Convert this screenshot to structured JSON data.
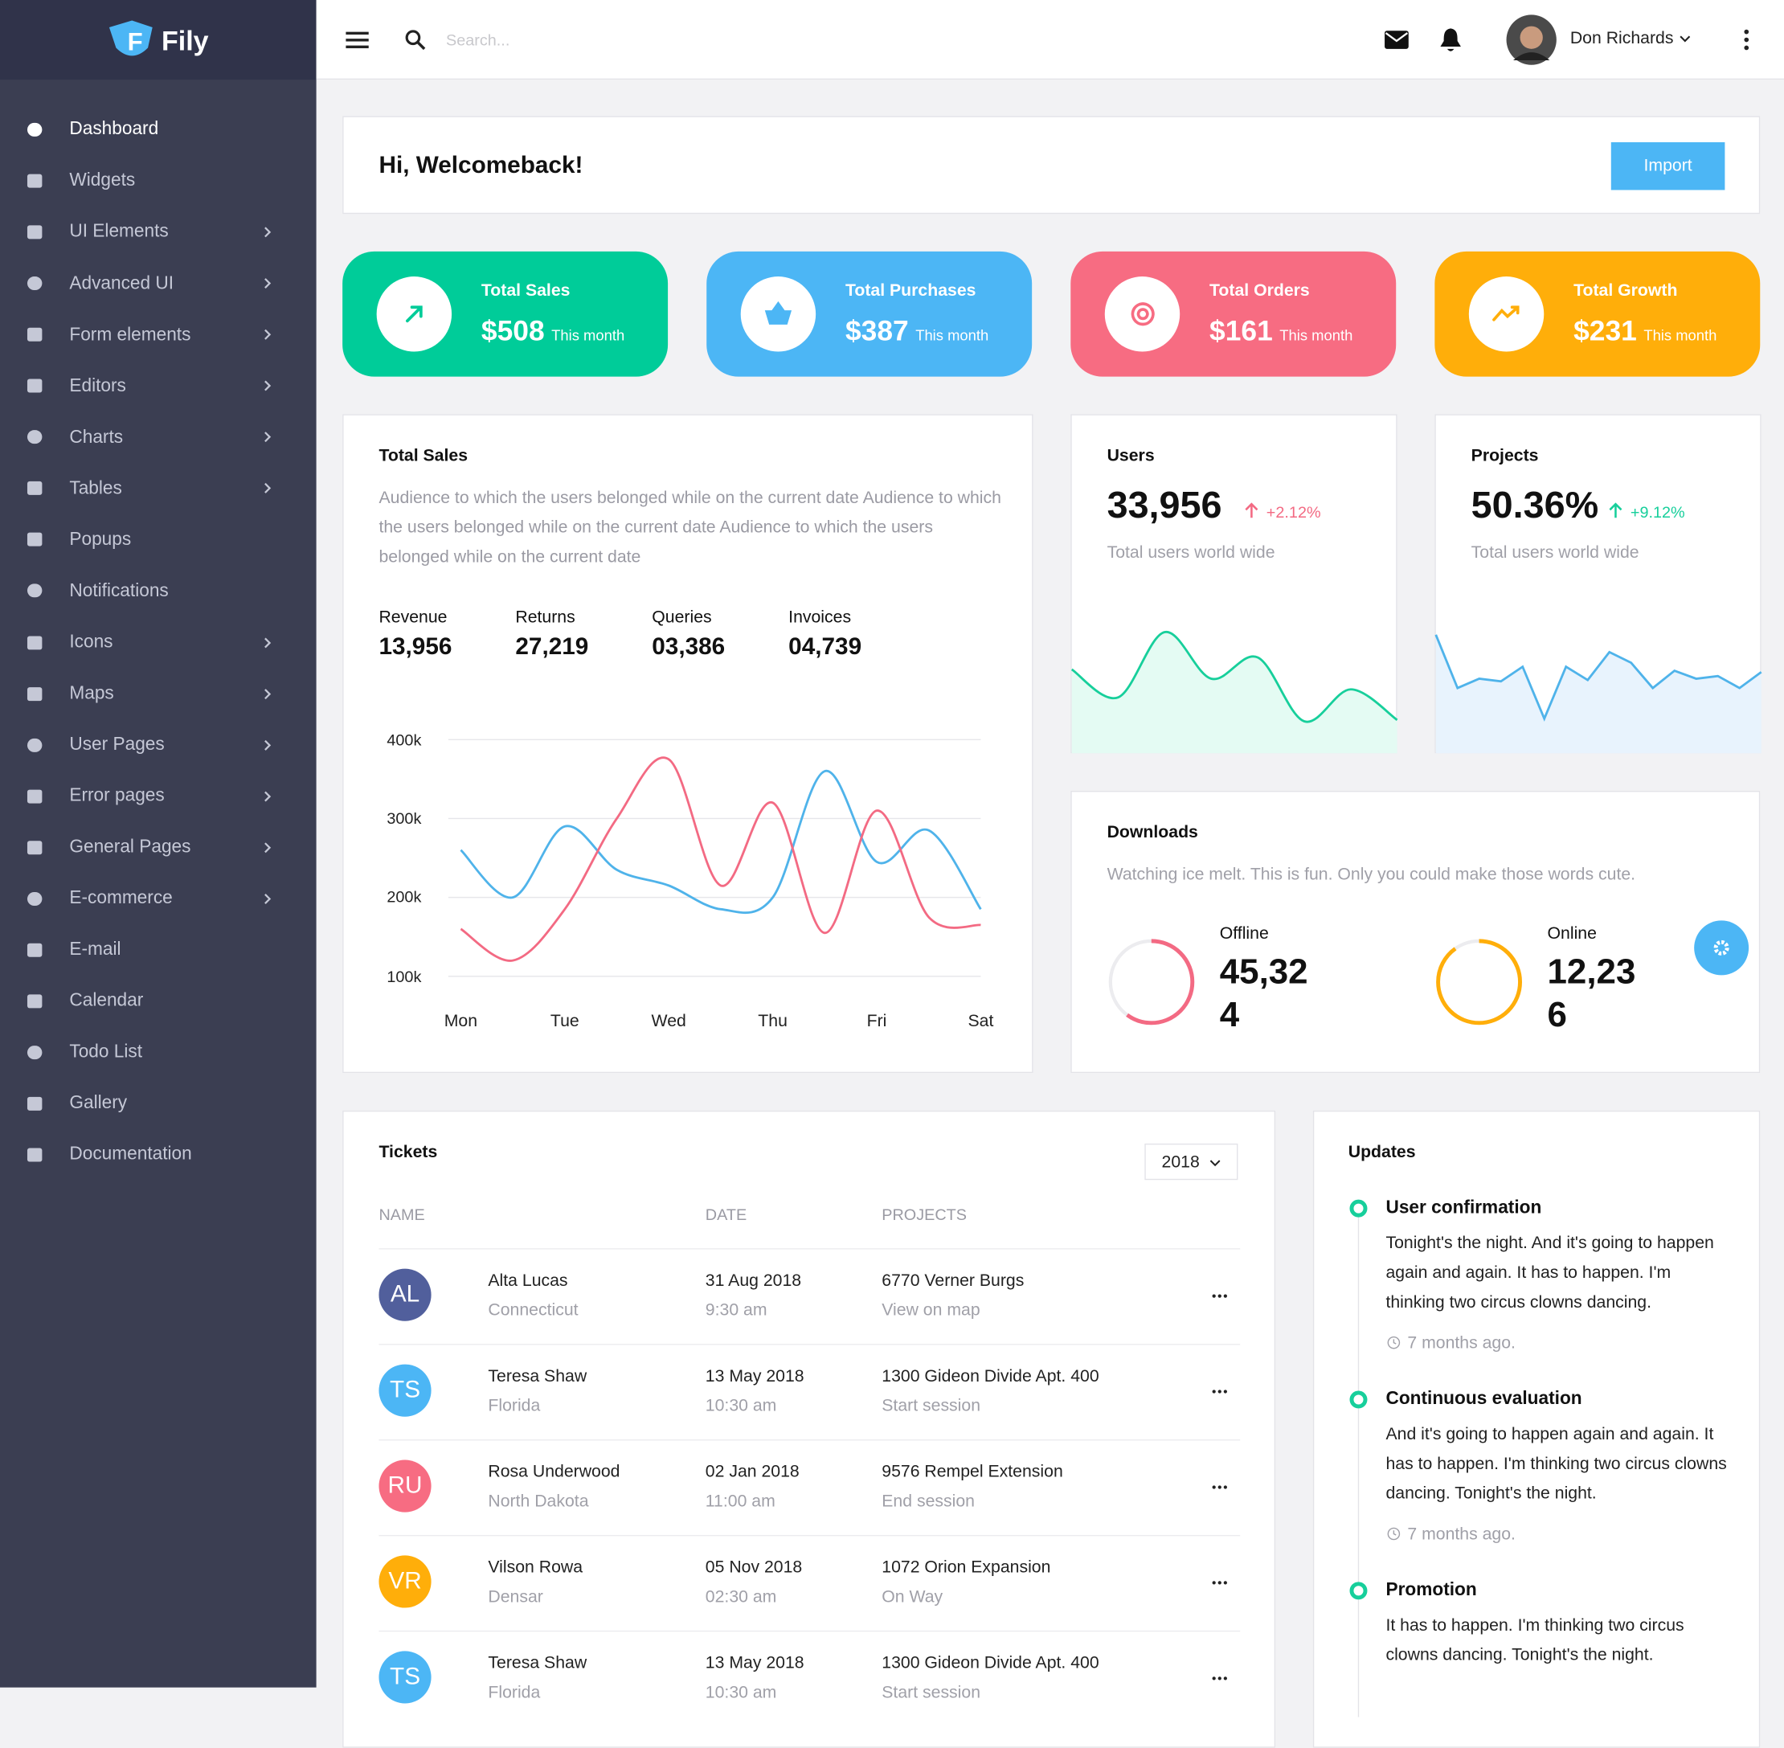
{
  "brand": {
    "logo_letter": "F",
    "name": "Fily"
  },
  "sidebar": {
    "items": [
      {
        "label": "Dashboard",
        "has_submenu": false
      },
      {
        "label": "Widgets",
        "has_submenu": false
      },
      {
        "label": "UI Elements",
        "has_submenu": true
      },
      {
        "label": "Advanced UI",
        "has_submenu": true
      },
      {
        "label": "Form elements",
        "has_submenu": true
      },
      {
        "label": "Editors",
        "has_submenu": true
      },
      {
        "label": "Charts",
        "has_submenu": true
      },
      {
        "label": "Tables",
        "has_submenu": true
      },
      {
        "label": "Popups",
        "has_submenu": false
      },
      {
        "label": "Notifications",
        "has_submenu": false
      },
      {
        "label": "Icons",
        "has_submenu": true
      },
      {
        "label": "Maps",
        "has_submenu": true
      },
      {
        "label": "User Pages",
        "has_submenu": true
      },
      {
        "label": "Error pages",
        "has_submenu": true
      },
      {
        "label": "General Pages",
        "has_submenu": true
      },
      {
        "label": "E-commerce",
        "has_submenu": true
      },
      {
        "label": "E-mail",
        "has_submenu": false
      },
      {
        "label": "Calendar",
        "has_submenu": false
      },
      {
        "label": "Todo List",
        "has_submenu": false
      },
      {
        "label": "Gallery",
        "has_submenu": false
      },
      {
        "label": "Documentation",
        "has_submenu": false
      }
    ]
  },
  "topbar": {
    "search_placeholder": "Search...",
    "user_name": "Don Richards"
  },
  "welcome": {
    "title": "Hi, Welcomeback!",
    "button": "Import"
  },
  "stat_cards": [
    {
      "label": "Total Sales",
      "value": "$508",
      "period": "This month",
      "color": "#00cc99"
    },
    {
      "label": "Total Purchases",
      "value": "$387",
      "period": "This month",
      "color": "#4cb6f5"
    },
    {
      "label": "Total Orders",
      "value": "$161",
      "period": "This month",
      "color": "#f76c82"
    },
    {
      "label": "Total Growth",
      "value": "$231",
      "period": "This month",
      "color": "#ffae0a"
    }
  ],
  "total_sales": {
    "title": "Total Sales",
    "description": "Audience to which the users belonged while on the current date Audience to which the users belonged while on the current date Audience to which the users belonged while on the current date",
    "metrics": [
      {
        "label": "Revenue",
        "value": "13,956"
      },
      {
        "label": "Returns",
        "value": "27,219"
      },
      {
        "label": "Queries",
        "value": "03,386"
      },
      {
        "label": "Invoices",
        "value": "04,739"
      }
    ],
    "chart_data": {
      "type": "line",
      "categories": [
        "Mon",
        null,
        "Tue",
        null,
        "Wed",
        null,
        "Thu",
        null,
        "Fri",
        null,
        "Sat"
      ],
      "series": [
        {
          "color": "#4fb3ea",
          "values": [
            260000,
            200000,
            290000,
            235000,
            215000,
            185000,
            200000,
            360000,
            245000,
            285000,
            185000
          ]
        },
        {
          "color": "#f36a83",
          "values": [
            160000,
            120000,
            185000,
            300000,
            375000,
            215000,
            320000,
            155000,
            310000,
            175000,
            165000
          ]
        }
      ],
      "ylim": [
        100000,
        400000
      ],
      "yticks": [
        {
          "value": 100000,
          "label": "100k"
        },
        {
          "value": 200000,
          "label": "200k"
        },
        {
          "value": 300000,
          "label": "300k"
        },
        {
          "value": 400000,
          "label": "400k"
        }
      ],
      "grid": true
    }
  },
  "users": {
    "title": "Users",
    "value": "33,956",
    "change": "+2.12%",
    "subtitle": "Total users world wide",
    "chart_data": {
      "type": "area",
      "values": [
        63,
        42,
        91,
        56,
        72,
        24,
        48,
        25
      ],
      "ylim": [
        0,
        100
      ],
      "color": "#17cf9b",
      "fill": "#e4fbf3",
      "smooth": true
    }
  },
  "projects": {
    "title": "Projects",
    "value": "50.36%",
    "change": "+9.12%",
    "subtitle": "Total users world wide",
    "chart_data": {
      "type": "area",
      "values": [
        89,
        49,
        56,
        54,
        65,
        26,
        65,
        55,
        76,
        68,
        49,
        62,
        56,
        58,
        49,
        61
      ],
      "ylim": [
        0,
        100
      ],
      "color": "#4fb3ea",
      "fill": "#e8f3fd",
      "smooth": false
    }
  },
  "downloads": {
    "title": "Downloads",
    "description": "Watching ice melt. This is fun. Only you could make those words cute.",
    "items": [
      {
        "label": "Offline",
        "value": "45,324",
        "progress": 60,
        "color": "#f36a83"
      },
      {
        "label": "Online",
        "value": "12,236",
        "progress": 90,
        "color": "#ffae0a"
      }
    ]
  },
  "tickets": {
    "title": "Tickets",
    "year": "2018",
    "headers": [
      "NAME",
      "DATE",
      "PROJECTS"
    ],
    "rows": [
      {
        "initials": "AL",
        "color": "#515f9c",
        "name": "Alta Lucas",
        "location": "Connecticut",
        "date": "31 Aug 2018",
        "time": "9:30 am",
        "project": "6770 Verner Burgs",
        "action": "View on map"
      },
      {
        "initials": "TS",
        "color": "#4cb6f5",
        "name": "Teresa Shaw",
        "location": "Florida",
        "date": "13 May 2018",
        "time": "10:30 am",
        "project": "1300 Gideon Divide Apt. 400",
        "action": "Start session"
      },
      {
        "initials": "RU",
        "color": "#f76c82",
        "name": "Rosa Underwood",
        "location": "North Dakota",
        "date": "02 Jan 2018",
        "time": "11:00 am",
        "project": "9576 Rempel Extension",
        "action": "End session"
      },
      {
        "initials": "VR",
        "color": "#ffae0a",
        "name": "Vilson Rowa",
        "location": "Densar",
        "date": "05 Nov 2018",
        "time": "02:30 am",
        "project": "1072 Orion Expansion",
        "action": "On Way"
      },
      {
        "initials": "TS",
        "color": "#4cb6f5",
        "name": "Teresa Shaw",
        "location": "Florida",
        "date": "13 May 2018",
        "time": "10:30 am",
        "project": "1300 Gideon Divide Apt. 400",
        "action": "Start session"
      }
    ]
  },
  "updates": {
    "title": "Updates",
    "items": [
      {
        "title": "User confirmation",
        "text": "Tonight's the night. And it's going to happen again and again. It has to happen. I'm thinking two circus clowns dancing.",
        "time": "7 months ago."
      },
      {
        "title": "Continuous evaluation",
        "text": "And it's going to happen again and again. It has to happen. I'm thinking two circus clowns dancing. Tonight's the night.",
        "time": "7 months ago."
      },
      {
        "title": "Promotion",
        "text": "It has to happen. I'm thinking two circus clowns dancing. Tonight's the night."
      }
    ]
  }
}
